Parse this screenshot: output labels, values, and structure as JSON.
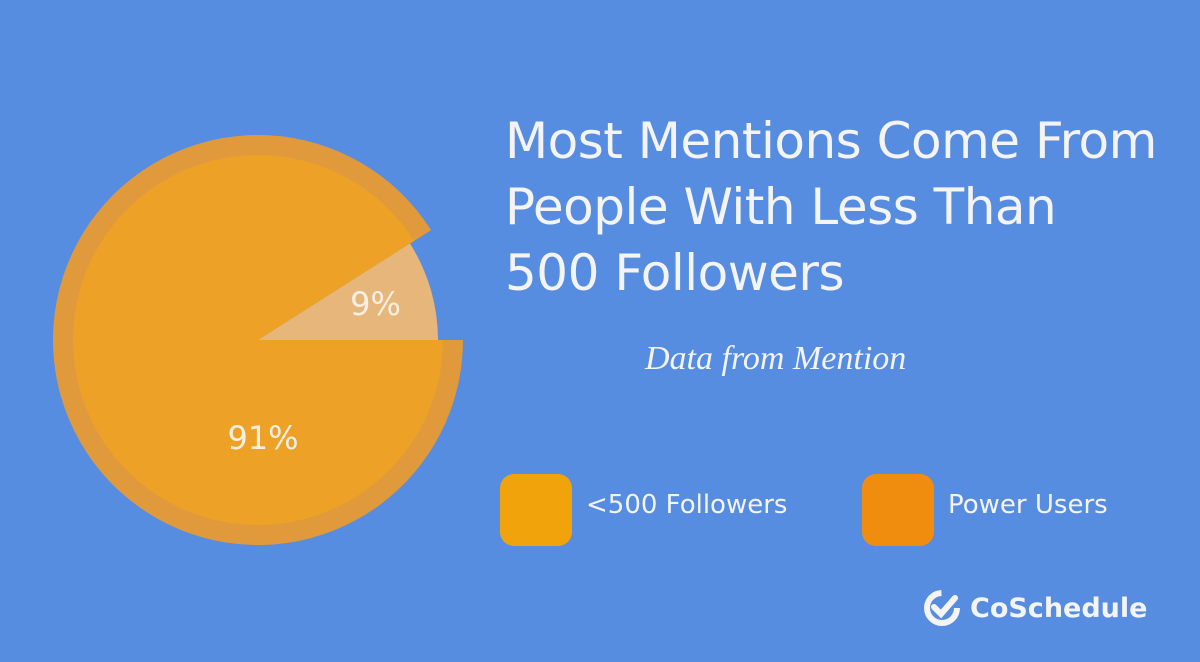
{
  "chart_data": {
    "type": "pie",
    "title": "Most Mentions Come From People With Less Than 500 Followers",
    "subtitle": "Data from Mention",
    "categories": [
      "<500 Followers",
      "Power Users"
    ],
    "values": [
      91,
      9
    ],
    "value_labels": [
      "91%",
      "9%"
    ],
    "colors": [
      "#eda126",
      "#e6b67a"
    ],
    "rim_color": "#e09a3c",
    "legend_colors": [
      "#f0a30a",
      "#f08c0e"
    ],
    "brand": "CoSchedule"
  }
}
